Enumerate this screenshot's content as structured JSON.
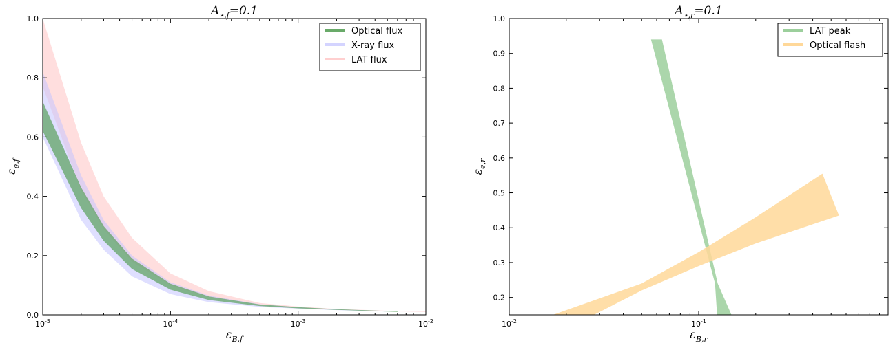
{
  "chart_data": [
    {
      "type": "area",
      "title": "A⋆,f=0.1",
      "xlabel": "εB,f",
      "ylabel": "εe,f",
      "xscale": "log",
      "xlim": [
        1e-05,
        0.01
      ],
      "ylim": [
        0.0,
        1.0
      ],
      "x_tick_labels": [
        "10-5",
        "10-4",
        "10-3",
        "10-2"
      ],
      "y_tick_labels": [
        "0.0",
        "0.2",
        "0.4",
        "0.6",
        "0.8",
        "1.0"
      ],
      "legend_position": "top-right",
      "series": [
        {
          "name": "LAT flux",
          "color": "#ffb6b6",
          "opacity": 0.45,
          "x": [
            1e-05,
            2e-05,
            3e-05,
            5e-05,
            0.0001,
            0.0002,
            0.0005,
            0.001,
            0.002,
            0.005,
            0.01
          ],
          "upper": [
            1.0,
            0.58,
            0.4,
            0.26,
            0.14,
            0.08,
            0.04,
            0.028,
            0.02,
            0.014,
            0.012
          ],
          "lower": [
            0.77,
            0.42,
            0.29,
            0.18,
            0.1,
            0.06,
            0.034,
            0.025,
            0.018,
            0.012,
            0.01
          ]
        },
        {
          "name": "X-ray flux",
          "color": "#c5c5ff",
          "opacity": 0.55,
          "x": [
            1e-05,
            2e-05,
            3e-05,
            5e-05,
            0.0001,
            0.0002,
            0.0005,
            0.001,
            0.002,
            0.005
          ],
          "upper": [
            0.82,
            0.47,
            0.32,
            0.2,
            0.11,
            0.065,
            0.036,
            0.026,
            0.019,
            0.013
          ],
          "lower": [
            0.6,
            0.32,
            0.22,
            0.13,
            0.07,
            0.043,
            0.027,
            0.021,
            0.016,
            0.011
          ]
        },
        {
          "name": "Optical flux",
          "color": "#4f9b4f",
          "opacity": 0.65,
          "x": [
            1e-05,
            2e-05,
            3e-05,
            5e-05,
            0.0001,
            0.0002,
            0.0005,
            0.001,
            0.002,
            0.005,
            0.006
          ],
          "upper": [
            0.72,
            0.43,
            0.3,
            0.19,
            0.105,
            0.062,
            0.035,
            0.026,
            0.019,
            0.013,
            0.012
          ],
          "lower": [
            0.62,
            0.36,
            0.25,
            0.155,
            0.085,
            0.05,
            0.03,
            0.022,
            0.017,
            0.011,
            0.01
          ]
        }
      ]
    },
    {
      "type": "area",
      "title": "A⋆,r=0.1",
      "xlabel": "εB,r",
      "ylabel": "εe,r",
      "xscale": "log",
      "xlim": [
        0.01,
        1.0
      ],
      "ylim": [
        0.15,
        1.0
      ],
      "x_tick_labels": [
        "10-2",
        "10-1"
      ],
      "y_tick_labels": [
        "0.2",
        "0.3",
        "0.4",
        "0.5",
        "0.6",
        "0.7",
        "0.8",
        "0.9",
        "1.0"
      ],
      "legend_position": "top-right",
      "series": [
        {
          "name": "LAT peak",
          "color": "#9ccf9c",
          "opacity": 0.85,
          "polygon": [
            [
              0.056,
              0.94
            ],
            [
              0.064,
              0.94
            ],
            [
              0.126,
              0.24
            ],
            [
              0.149,
              0.15
            ],
            [
              0.125,
              0.15
            ],
            [
              0.122,
              0.24
            ]
          ]
        },
        {
          "name": "Optical flash",
          "color": "#ffd899",
          "opacity": 0.85,
          "polygon": [
            [
              0.017,
              0.15
            ],
            [
              0.05,
              0.24
            ],
            [
              0.1,
              0.33
            ],
            [
              0.2,
              0.43
            ],
            [
              0.45,
              0.555
            ],
            [
              0.55,
              0.435
            ],
            [
              0.2,
              0.355
            ],
            [
              0.1,
              0.29
            ],
            [
              0.05,
              0.22
            ],
            [
              0.028,
              0.15
            ]
          ]
        }
      ]
    }
  ]
}
